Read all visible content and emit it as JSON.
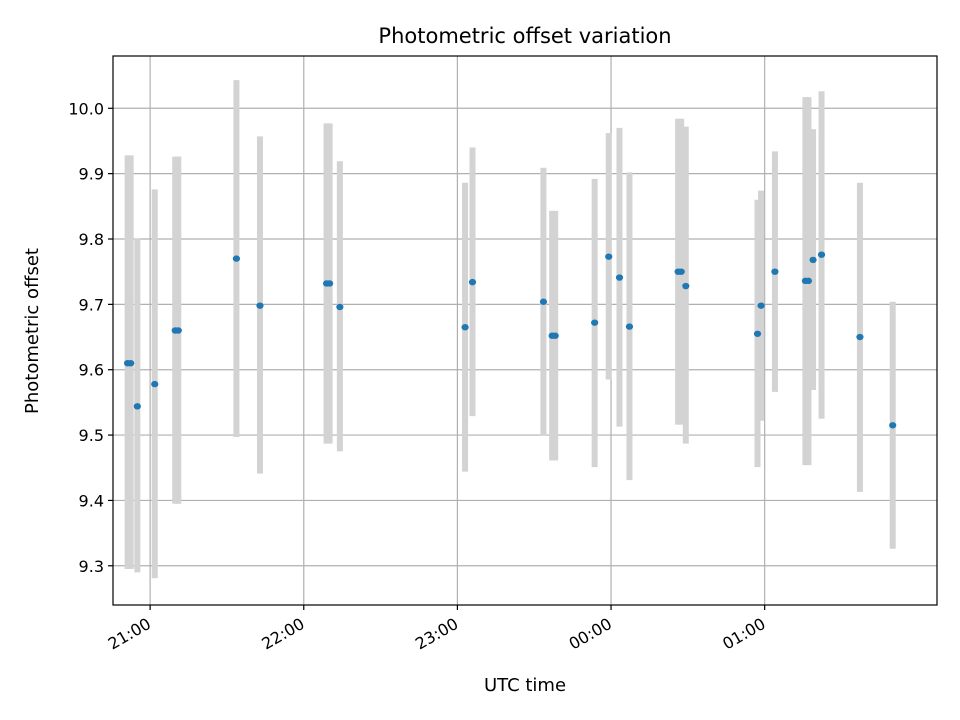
{
  "chart_data": {
    "type": "scatter",
    "title": "Photometric offset variation",
    "xlabel": "UTC time",
    "ylabel": "Photometric offset",
    "x_unit": "minutes after 20:00 UTC",
    "xlim": [
      45.5,
      367.3
    ],
    "ylim": [
      9.24,
      10.08
    ],
    "grid": true,
    "colors": {
      "point": "#1f77b4",
      "errorbar": "#d3d3d3",
      "grid": "#b0b0b0"
    },
    "x_ticks": [
      {
        "label": "21:00",
        "value": 60
      },
      {
        "label": "22:00",
        "value": 120
      },
      {
        "label": "23:00",
        "value": 180
      },
      {
        "label": "00:00",
        "value": 240
      },
      {
        "label": "01:00",
        "value": 300
      }
    ],
    "y_ticks": [
      {
        "label": "9.3",
        "value": 9.3
      },
      {
        "label": "9.4",
        "value": 9.4
      },
      {
        "label": "9.5",
        "value": 9.5
      },
      {
        "label": "9.6",
        "value": 9.6
      },
      {
        "label": "9.7",
        "value": 9.7
      },
      {
        "label": "9.8",
        "value": 9.8
      },
      {
        "label": "9.9",
        "value": 9.9
      },
      {
        "label": "10.0",
        "value": 10.0
      }
    ],
    "points": [
      {
        "x": 51.2,
        "y": 9.61,
        "low": 9.295,
        "high": 9.928
      },
      {
        "x": 52.4,
        "y": 9.61,
        "low": 9.295,
        "high": 9.928
      },
      {
        "x": 55.0,
        "y": 9.544,
        "low": 9.29,
        "high": 9.801
      },
      {
        "x": 61.8,
        "y": 9.578,
        "low": 9.281,
        "high": 9.876
      },
      {
        "x": 69.8,
        "y": 9.66,
        "low": 9.395,
        "high": 9.926
      },
      {
        "x": 71.0,
        "y": 9.66,
        "low": 9.395,
        "high": 9.926
      },
      {
        "x": 93.7,
        "y": 9.77,
        "low": 9.497,
        "high": 10.043
      },
      {
        "x": 102.9,
        "y": 9.698,
        "low": 9.441,
        "high": 9.957
      },
      {
        "x": 128.9,
        "y": 9.732,
        "low": 9.487,
        "high": 9.977
      },
      {
        "x": 130.1,
        "y": 9.732,
        "low": 9.487,
        "high": 9.977
      },
      {
        "x": 134.1,
        "y": 9.696,
        "low": 9.475,
        "high": 9.919
      },
      {
        "x": 183.0,
        "y": 9.665,
        "low": 9.444,
        "high": 9.886
      },
      {
        "x": 185.9,
        "y": 9.734,
        "low": 9.529,
        "high": 9.94
      },
      {
        "x": 213.6,
        "y": 9.704,
        "low": 9.499,
        "high": 9.909
      },
      {
        "x": 217.0,
        "y": 9.652,
        "low": 9.461,
        "high": 9.843
      },
      {
        "x": 218.2,
        "y": 9.652,
        "low": 9.461,
        "high": 9.843
      },
      {
        "x": 233.6,
        "y": 9.672,
        "low": 9.451,
        "high": 9.892
      },
      {
        "x": 239.1,
        "y": 9.773,
        "low": 9.585,
        "high": 9.962
      },
      {
        "x": 243.3,
        "y": 9.741,
        "low": 9.513,
        "high": 9.97
      },
      {
        "x": 247.2,
        "y": 9.666,
        "low": 9.431,
        "high": 9.902
      },
      {
        "x": 266.2,
        "y": 9.75,
        "low": 9.516,
        "high": 9.984
      },
      {
        "x": 267.4,
        "y": 9.75,
        "low": 9.516,
        "high": 9.984
      },
      {
        "x": 269.2,
        "y": 9.728,
        "low": 9.487,
        "high": 9.972
      },
      {
        "x": 297.2,
        "y": 9.655,
        "low": 9.451,
        "high": 9.86
      },
      {
        "x": 298.6,
        "y": 9.698,
        "low": 9.522,
        "high": 9.874
      },
      {
        "x": 304.0,
        "y": 9.75,
        "low": 9.566,
        "high": 9.934
      },
      {
        "x": 315.9,
        "y": 9.736,
        "low": 9.454,
        "high": 10.017
      },
      {
        "x": 317.1,
        "y": 9.736,
        "low": 9.454,
        "high": 10.017
      },
      {
        "x": 318.9,
        "y": 9.768,
        "low": 9.569,
        "high": 9.968
      },
      {
        "x": 322.2,
        "y": 9.776,
        "low": 9.525,
        "high": 10.026
      },
      {
        "x": 337.2,
        "y": 9.65,
        "low": 9.413,
        "high": 9.886
      },
      {
        "x": 350.0,
        "y": 9.515,
        "low": 9.326,
        "high": 9.704
      }
    ]
  }
}
